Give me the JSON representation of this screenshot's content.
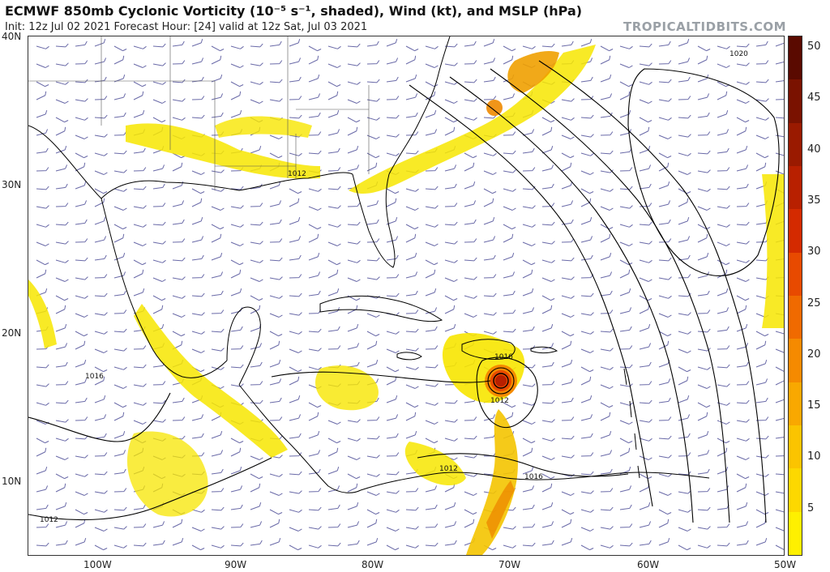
{
  "header": {
    "title": "ECMWF 850mb Cyclonic Vorticity (10⁻⁵ s⁻¹, shaded), Wind (kt), and MSLP (hPa)",
    "subtitle": "Init: 12z Jul 02 2021   Forecast Hour: [24]   valid at 12z Sat, Jul 03 2021",
    "brand": "TROPICALTIDBITS.COM"
  },
  "axes": {
    "lat_labels": [
      "40N",
      "30N",
      "20N",
      "10N"
    ],
    "lon_labels": [
      "100W",
      "90W",
      "80W",
      "70W",
      "60W",
      "50W"
    ]
  },
  "colorbar": {
    "ticks": [
      "50",
      "45",
      "40",
      "35",
      "30",
      "25",
      "20",
      "15",
      "10",
      "5"
    ],
    "colors": [
      "#5a0a00",
      "#7a1200",
      "#9a1a00",
      "#b82000",
      "#d42a00",
      "#e84a00",
      "#f06a00",
      "#f58a00",
      "#f9a800",
      "#fbc400",
      "#fdd800",
      "#fef000"
    ]
  },
  "contour_labels": {
    "l1020": "1020",
    "l1012_gulf": "1012",
    "l1016_hisp": "1016",
    "l1012_low": "1012",
    "l1016_gom": "1016",
    "l1012_col": "1012",
    "l1016_ven": "1016",
    "l1012_pac": "1012"
  },
  "colors": {
    "vort_light": "#f7e600",
    "vort_mid": "#f4c400",
    "vort_orange": "#ee8a00",
    "vort_red": "#d42a00",
    "coast": "#000000",
    "isobar": "#000000",
    "barb": "#6a6aa8"
  }
}
